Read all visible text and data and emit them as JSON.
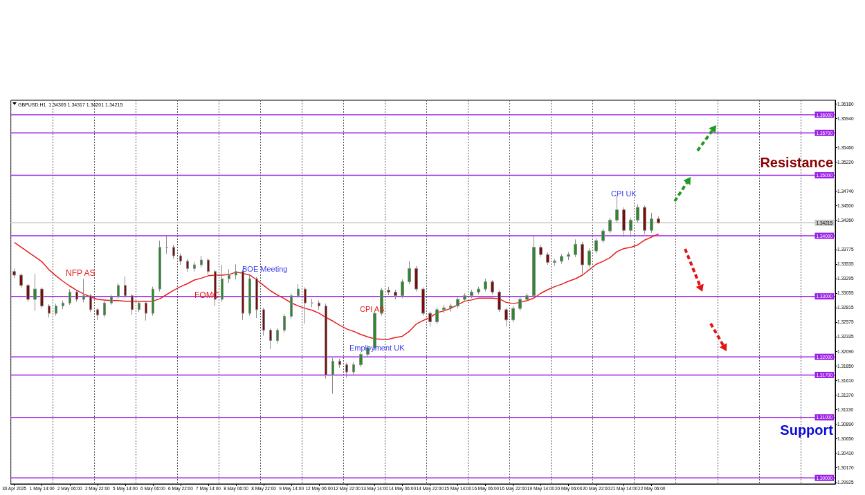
{
  "chart_data": {
    "type": "candlestick",
    "title": "GBPUSD.H1  1.34305 1.34317 1.34201 1.34215",
    "categories": [
      "30 Apr 2025",
      null,
      null,
      null,
      "1 May 14:00",
      null,
      null,
      null,
      "2 May 06:00",
      null,
      null,
      null,
      "2 May 22:00",
      null,
      null,
      null,
      "5 May 14:00",
      null,
      null,
      null,
      "6 May 06:00",
      null,
      null,
      null,
      "6 May 22:00",
      null,
      null,
      null,
      "7 May 14:00",
      null,
      null,
      null,
      "8 May 06:00",
      null,
      null,
      null,
      "8 May 22:00",
      null,
      null,
      null,
      "9 May 14:00",
      null,
      null,
      null,
      "12 May 06:00",
      null,
      null,
      null,
      "12 May 22:00",
      null,
      null,
      null,
      "13 May 14:00",
      null,
      null,
      null,
      "14 May 06:00",
      null,
      null,
      null,
      "14 May 22:00",
      null,
      null,
      null,
      "15 May 14:00",
      null,
      null,
      null,
      "16 May 06:00",
      null,
      null,
      null,
      "16 May 22:00",
      null,
      null,
      null,
      "19 May 14:00",
      null,
      null,
      null,
      "20 May 06:00",
      null,
      null,
      null,
      "20 May 22:00",
      null,
      null,
      null,
      "21 May 14:00",
      null,
      null,
      null,
      "22 May 06:00",
      null,
      null,
      null,
      null,
      null,
      null,
      null,
      null,
      null,
      null,
      null,
      null,
      null,
      null,
      null,
      null,
      null,
      null,
      null,
      null,
      null,
      null,
      null,
      null,
      null,
      null
    ],
    "ylim": [
      1.299,
      1.3624
    ],
    "yticks": [
      {
        "value": 1.3618,
        "label": "1.36180"
      },
      {
        "value": 1.3594,
        "label": "1.35940"
      },
      {
        "value": 1.3546,
        "label": "1.35460"
      },
      {
        "value": 1.3522,
        "label": "1.35220"
      },
      {
        "value": 1.3474,
        "label": "1.34740"
      },
      {
        "value": 1.345,
        "label": "1.34500"
      },
      {
        "value": 1.3426,
        "label": "1.34260"
      },
      1.33775,
      1.33535,
      1.33295,
      1.33055,
      1.32815,
      1.32575,
      1.32335,
      {
        "value": 1.3209,
        "label": "1.32090"
      },
      {
        "value": 1.3185,
        "label": "1.31850"
      },
      {
        "value": 1.3161,
        "label": "1.31610"
      },
      {
        "value": 1.3137,
        "label": "1.31370"
      },
      {
        "value": 1.3113,
        "label": "1.31130"
      },
      {
        "value": 1.3089,
        "label": "1.30890"
      },
      {
        "value": 1.3065,
        "label": "1.30650"
      },
      {
        "value": 1.3041,
        "label": "1.30410"
      },
      {
        "value": 1.3017,
        "label": "1.30170"
      },
      1.29925
    ],
    "grid": "x",
    "series": [
      {
        "ohlc": [
          [
            1.3341,
            1.3346,
            1.333,
            1.3335
          ],
          [
            1.3335,
            1.3338,
            1.3314,
            1.3318
          ],
          [
            1.3318,
            1.3321,
            1.3291,
            1.3295
          ],
          [
            1.3295,
            1.3337,
            1.3276,
            1.3312
          ],
          [
            1.3312,
            1.3315,
            1.328,
            1.3284
          ],
          [
            1.3284,
            1.3287,
            1.3265,
            1.3272
          ],
          [
            1.3272,
            1.3288,
            1.3268,
            1.3284
          ],
          [
            1.3284,
            1.3293,
            1.3279,
            1.3289
          ],
          [
            1.3289,
            1.3312,
            1.3286,
            1.3307
          ],
          [
            1.3307,
            1.331,
            1.3291,
            1.3295
          ],
          [
            1.3295,
            1.3329,
            1.329,
            1.3301
          ],
          [
            1.3301,
            1.3304,
            1.3274,
            1.3278
          ],
          [
            1.3278,
            1.3281,
            1.3261,
            1.3269
          ],
          [
            1.3269,
            1.3293,
            1.3265,
            1.3289
          ],
          [
            1.3289,
            1.3303,
            1.3286,
            1.3299
          ],
          [
            1.3299,
            1.3322,
            1.3296,
            1.3318
          ],
          [
            1.3318,
            1.3333,
            1.3297,
            1.3301
          ],
          [
            1.3301,
            1.3304,
            1.3269,
            1.3278
          ],
          [
            1.3278,
            1.3293,
            1.3274,
            1.3289
          ],
          [
            1.3289,
            1.3292,
            1.326,
            1.3272
          ],
          [
            1.3272,
            1.3316,
            1.3268,
            1.3312
          ],
          [
            1.3312,
            1.3392,
            1.3308,
            1.3381
          ],
          [
            1.3381,
            1.3399,
            1.337,
            1.3381
          ],
          [
            1.3381,
            1.3385,
            1.3362,
            1.3367
          ],
          [
            1.3367,
            1.3371,
            1.3352,
            1.3358
          ],
          [
            1.3358,
            1.3362,
            1.334,
            1.3346
          ],
          [
            1.3346,
            1.3357,
            1.3341,
            1.3352
          ],
          [
            1.3352,
            1.3367,
            1.3348,
            1.336
          ],
          [
            1.336,
            1.3363,
            1.3336,
            1.3341
          ],
          [
            1.3341,
            1.3344,
            1.3284,
            1.3295
          ],
          [
            1.3295,
            1.3352,
            1.3291,
            1.3329
          ],
          [
            1.3329,
            1.3345,
            1.3322,
            1.3335
          ],
          [
            1.3335,
            1.3353,
            1.3328,
            1.3341
          ],
          [
            1.3341,
            1.3344,
            1.3261,
            1.3272
          ],
          [
            1.3272,
            1.3337,
            1.3268,
            1.3329
          ],
          [
            1.3329,
            1.3332,
            1.3264,
            1.3278
          ],
          [
            1.3278,
            1.3281,
            1.3235,
            1.3244
          ],
          [
            1.3244,
            1.3247,
            1.3213,
            1.3227
          ],
          [
            1.3227,
            1.3248,
            1.3222,
            1.3244
          ],
          [
            1.3244,
            1.3271,
            1.324,
            1.3267
          ],
          [
            1.3267,
            1.3305,
            1.3263,
            1.3301
          ],
          [
            1.3301,
            1.332,
            1.3297,
            1.3312
          ],
          [
            1.3312,
            1.3315,
            1.3255,
            1.3289
          ],
          [
            1.3289,
            1.3296,
            1.3282,
            1.3289
          ],
          [
            1.3289,
            1.3293,
            1.3278,
            1.3284
          ],
          [
            1.3284,
            1.3288,
            1.3164,
            1.317
          ],
          [
            1.317,
            1.3198,
            1.3139,
            1.3193
          ],
          [
            1.3193,
            1.3197,
            1.3182,
            1.3187
          ],
          [
            1.3187,
            1.319,
            1.3166,
            1.3175
          ],
          [
            1.3175,
            1.3191,
            1.317,
            1.3187
          ],
          [
            1.3187,
            1.3208,
            1.3183,
            1.3204
          ],
          [
            1.3204,
            1.3219,
            1.32,
            1.3215
          ],
          [
            1.3215,
            1.3276,
            1.3211,
            1.3272
          ],
          [
            1.3272,
            1.3314,
            1.3268,
            1.331
          ],
          [
            1.331,
            1.3316,
            1.3302,
            1.3307
          ],
          [
            1.3307,
            1.3311,
            1.3295,
            1.3301
          ],
          [
            1.3301,
            1.3328,
            1.3297,
            1.3324
          ],
          [
            1.3324,
            1.3358,
            1.332,
            1.3346
          ],
          [
            1.3346,
            1.335,
            1.3308,
            1.3312
          ],
          [
            1.3312,
            1.3315,
            1.3268,
            1.3272
          ],
          [
            1.3272,
            1.3275,
            1.325,
            1.3258
          ],
          [
            1.3258,
            1.3282,
            1.3254,
            1.3278
          ],
          [
            1.3278,
            1.3286,
            1.3272,
            1.3281
          ],
          [
            1.3281,
            1.3288,
            1.3274,
            1.3284
          ],
          [
            1.3284,
            1.3299,
            1.328,
            1.3295
          ],
          [
            1.3295,
            1.3305,
            1.3291,
            1.3301
          ],
          [
            1.3301,
            1.3311,
            1.3297,
            1.3307
          ],
          [
            1.3307,
            1.3316,
            1.3303,
            1.3312
          ],
          [
            1.3312,
            1.3329,
            1.3308,
            1.3324
          ],
          [
            1.3324,
            1.3327,
            1.3303,
            1.3307
          ],
          [
            1.3307,
            1.331,
            1.3274,
            1.3278
          ],
          [
            1.3278,
            1.3281,
            1.325,
            1.3261
          ],
          [
            1.3261,
            1.3284,
            1.3257,
            1.328
          ],
          [
            1.328,
            1.3299,
            1.3276,
            1.3295
          ],
          [
            1.3295,
            1.3305,
            1.3291,
            1.3301
          ],
          [
            1.3301,
            1.3399,
            1.3297,
            1.3381
          ],
          [
            1.3381,
            1.3385,
            1.3365,
            1.3369
          ],
          [
            1.3369,
            1.3373,
            1.3352,
            1.3356
          ],
          [
            1.3356,
            1.3362,
            1.335,
            1.3358
          ],
          [
            1.3358,
            1.337,
            1.3354,
            1.3366
          ],
          [
            1.3366,
            1.3373,
            1.336,
            1.3369
          ],
          [
            1.3369,
            1.3394,
            1.3365,
            1.3386
          ],
          [
            1.3386,
            1.339,
            1.3337,
            1.3352
          ],
          [
            1.3352,
            1.3379,
            1.3348,
            1.3375
          ],
          [
            1.3375,
            1.3396,
            1.3371,
            1.3392
          ],
          [
            1.3392,
            1.3412,
            1.3388,
            1.3408
          ],
          [
            1.3408,
            1.343,
            1.3404,
            1.3426
          ],
          [
            1.3426,
            1.3466,
            1.3422,
            1.3443
          ],
          [
            1.3443,
            1.3447,
            1.3398,
            1.3409
          ],
          [
            1.3409,
            1.343,
            1.3398,
            1.3426
          ],
          [
            1.3426,
            1.3452,
            1.3422,
            1.3447
          ],
          [
            1.3447,
            1.345,
            1.3403,
            1.3409
          ],
          [
            1.3409,
            1.3438,
            1.3405,
            1.3428
          ],
          [
            1.3428,
            1.3432,
            1.342,
            1.34215
          ],
          null,
          null,
          null,
          null,
          null,
          null,
          null,
          null,
          null,
          null,
          null,
          null,
          null,
          null,
          null,
          null,
          null,
          null,
          null,
          null,
          null,
          null,
          null,
          null,
          null
        ]
      },
      {
        "type": "line",
        "color": "#e81c1c",
        "values": [
          1.3389,
          1.3381,
          1.3373,
          1.3365,
          1.3357,
          1.3344,
          1.3334,
          1.3325,
          1.3317,
          1.331,
          1.3304,
          1.3299,
          1.3295,
          1.3294,
          1.3293,
          1.3293,
          1.3292,
          1.3292,
          1.3292,
          1.3292,
          1.3292,
          1.3296,
          1.3303,
          1.331,
          1.3316,
          1.3321,
          1.3327,
          1.333,
          1.3334,
          1.3335,
          1.3335,
          1.3336,
          1.334,
          1.3338,
          1.3335,
          1.3327,
          1.3318,
          1.3309,
          1.3302,
          1.3296,
          1.3289,
          1.3284,
          1.328,
          1.3277,
          1.3272,
          1.3265,
          1.3259,
          1.3252,
          1.3246,
          1.3242,
          1.3237,
          1.3233,
          1.323,
          1.3229,
          1.3229,
          1.3232,
          1.3234,
          1.3242,
          1.3254,
          1.326,
          1.3265,
          1.3273,
          1.3276,
          1.328,
          1.3286,
          1.3292,
          1.3294,
          1.3297,
          1.3297,
          1.3297,
          1.3296,
          1.329,
          1.3288,
          1.329,
          1.3293,
          1.3297,
          1.3305,
          1.3311,
          1.3316,
          1.332,
          1.3325,
          1.3329,
          1.3335,
          1.3344,
          1.3353,
          1.3358,
          1.3364,
          1.3374,
          1.3379,
          1.3381,
          1.3385,
          1.3393,
          1.3398,
          1.3403,
          null,
          null,
          null,
          null,
          null,
          null,
          null,
          null,
          null,
          null,
          null,
          null,
          null,
          null,
          null,
          null,
          null,
          null,
          null,
          null,
          null,
          null,
          null,
          null,
          null
        ]
      }
    ],
    "ref_lines": [
      {
        "axis": "y",
        "value": 1.36,
        "label": "1.36000",
        "color": "#9b1fe8"
      },
      {
        "axis": "y",
        "value": 1.357,
        "label": "1.35700",
        "color": "#9b1fe8"
      },
      {
        "axis": "y",
        "value": 1.35,
        "label": "1.35000",
        "color": "#9b1fe8"
      },
      {
        "axis": "y",
        "value": 1.34215,
        "label": "1.34215",
        "color": "#c8c8c8"
      },
      {
        "axis": "y",
        "value": 1.34,
        "label": "1.34000",
        "color": "#9b1fe8"
      },
      {
        "axis": "y",
        "value": 1.33,
        "label": "1.33000",
        "color": "#9b1fe8"
      },
      {
        "axis": "y",
        "value": 1.32,
        "label": "1.32000",
        "color": "#9b1fe8"
      },
      {
        "axis": "y",
        "value": 1.317,
        "label": "1.31700",
        "color": "#9b1fe8"
      },
      {
        "axis": "y",
        "value": 1.31,
        "label": "1.31000",
        "color": "#9b1fe8"
      },
      {
        "axis": "y",
        "value": 1.3,
        "label": "1.30000",
        "color": "#9b1fe8"
      }
    ],
    "annotations": [
      "NFP AS",
      "FOMC",
      "BOE Meeting",
      "CPI AS",
      "Employment UK",
      "CPI UK",
      "Resistance",
      "Support"
    ]
  }
}
